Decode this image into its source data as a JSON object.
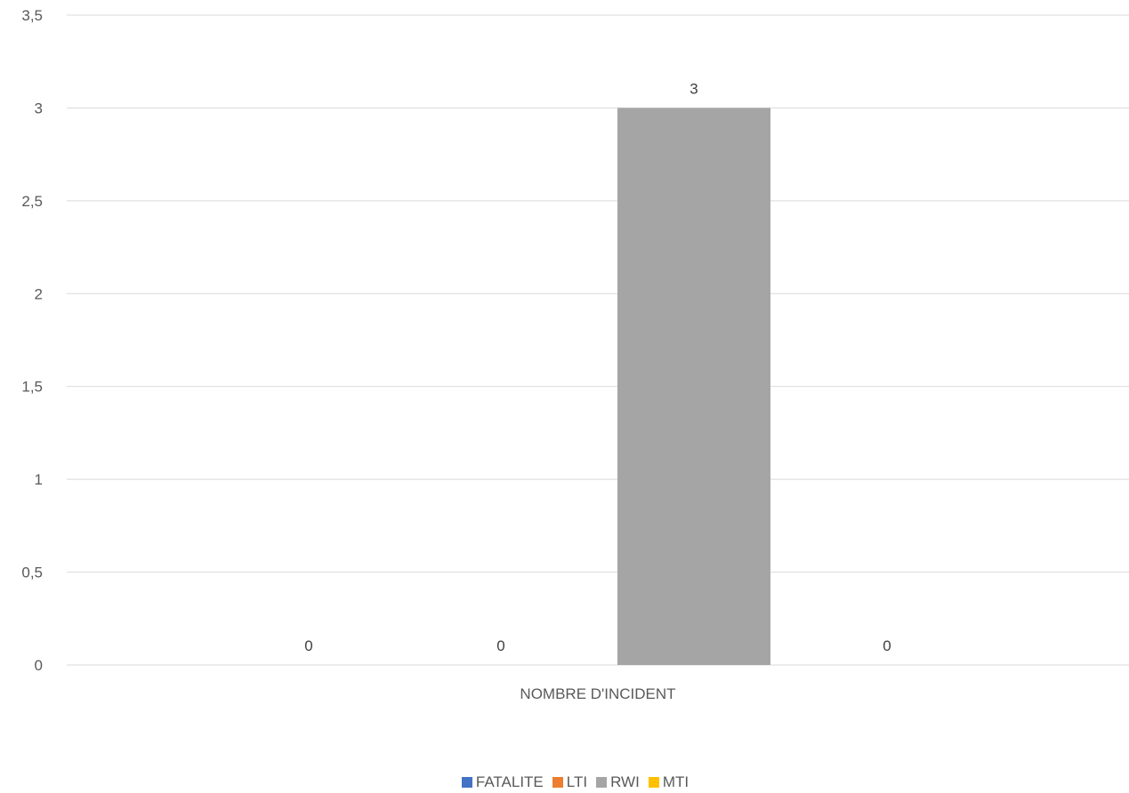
{
  "chart_data": {
    "type": "bar",
    "categories": [
      "NOMBRE D'INCIDENT"
    ],
    "series": [
      {
        "name": "FATALITE",
        "color": "#4472C4",
        "values": [
          0
        ]
      },
      {
        "name": "LTI",
        "color": "#ED7D31",
        "values": [
          0
        ]
      },
      {
        "name": "RWI",
        "color": "#A5A5A5",
        "values": [
          3
        ]
      },
      {
        "name": "MTI",
        "color": "#FFC000",
        "values": [
          0
        ]
      }
    ],
    "data_labels": [
      "0",
      "0",
      "3",
      "0"
    ],
    "y_ticks": [
      "0",
      "0,5",
      "1",
      "1,5",
      "2",
      "2,5",
      "3",
      "3,5"
    ],
    "y_tick_values": [
      0,
      0.5,
      1,
      1.5,
      2,
      2.5,
      3,
      3.5
    ],
    "ylim": [
      0,
      3.5
    ],
    "title": "",
    "xlabel": "",
    "ylabel": "",
    "grid": true,
    "legend_position": "bottom"
  },
  "colors": {
    "gridline": "#D9D9D9",
    "text": "#595959"
  }
}
